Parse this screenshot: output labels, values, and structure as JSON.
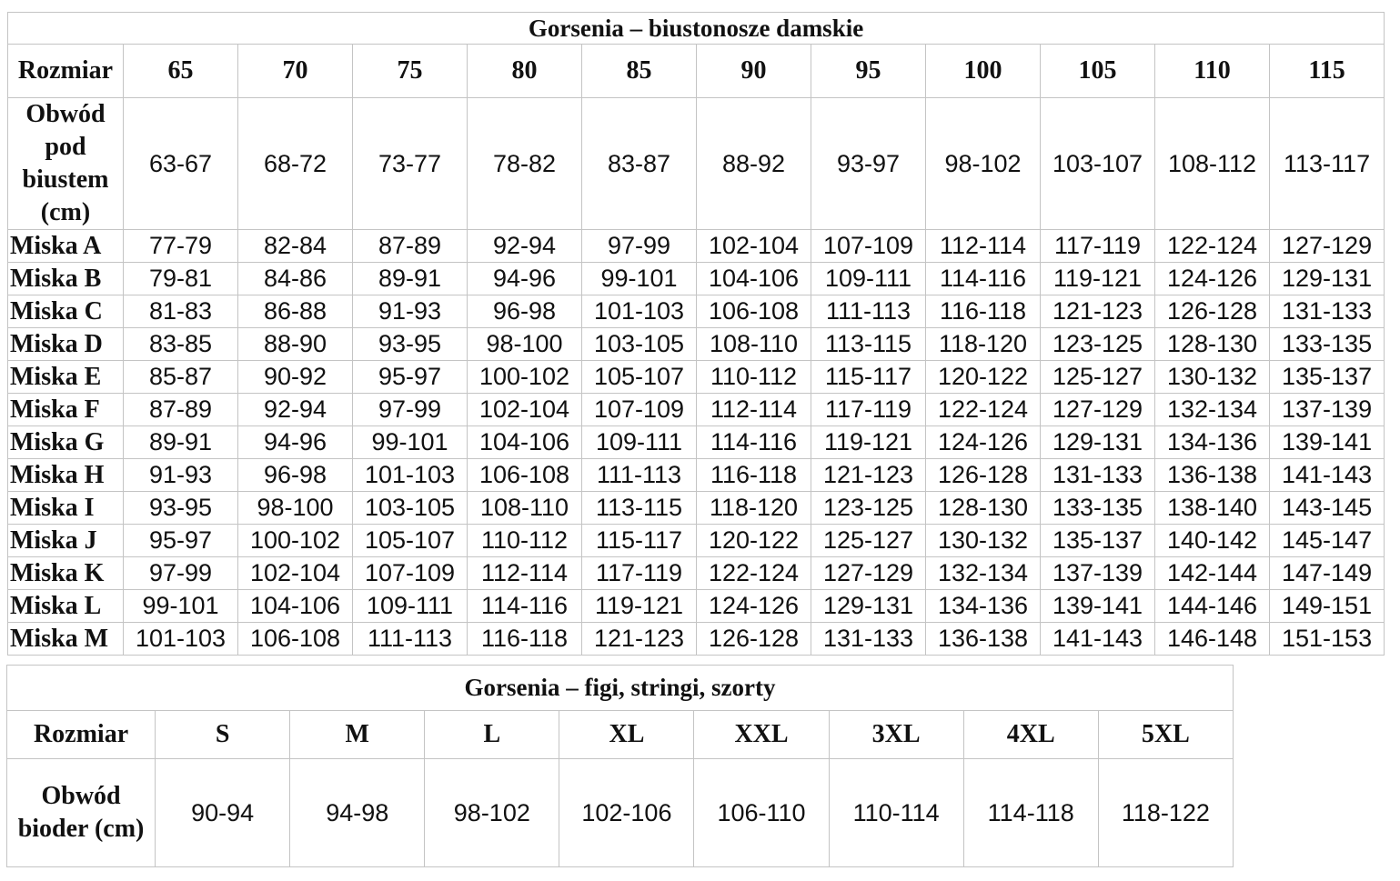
{
  "bras": {
    "title": "Gorsenia – biustonosze damskie",
    "size_label": "Rozmiar",
    "sizes": [
      "65",
      "70",
      "75",
      "80",
      "85",
      "90",
      "95",
      "100",
      "105",
      "110",
      "115"
    ],
    "underbust_label": "Obwód pod biustem (cm)",
    "underbust": [
      "63-67",
      "68-72",
      "73-77",
      "78-82",
      "83-87",
      "88-92",
      "93-97",
      "98-102",
      "103-107",
      "108-112",
      "113-117"
    ],
    "cups": [
      {
        "label": "Miska A",
        "values": [
          "77-79",
          "82-84",
          "87-89",
          "92-94",
          "97-99",
          "102-104",
          "107-109",
          "112-114",
          "117-119",
          "122-124",
          "127-129"
        ]
      },
      {
        "label": "Miska B",
        "values": [
          "79-81",
          "84-86",
          "89-91",
          "94-96",
          "99-101",
          "104-106",
          "109-111",
          "114-116",
          "119-121",
          "124-126",
          "129-131"
        ]
      },
      {
        "label": "Miska C",
        "values": [
          "81-83",
          "86-88",
          "91-93",
          "96-98",
          "101-103",
          "106-108",
          "111-113",
          "116-118",
          "121-123",
          "126-128",
          "131-133"
        ]
      },
      {
        "label": "Miska D",
        "values": [
          "83-85",
          "88-90",
          "93-95",
          "98-100",
          "103-105",
          "108-110",
          "113-115",
          "118-120",
          "123-125",
          "128-130",
          "133-135"
        ]
      },
      {
        "label": "Miska E",
        "values": [
          "85-87",
          "90-92",
          "95-97",
          "100-102",
          "105-107",
          "110-112",
          "115-117",
          "120-122",
          "125-127",
          "130-132",
          "135-137"
        ]
      },
      {
        "label": "Miska F",
        "values": [
          "87-89",
          "92-94",
          "97-99",
          "102-104",
          "107-109",
          "112-114",
          "117-119",
          "122-124",
          "127-129",
          "132-134",
          "137-139"
        ]
      },
      {
        "label": "Miska G",
        "values": [
          "89-91",
          "94-96",
          "99-101",
          "104-106",
          "109-111",
          "114-116",
          "119-121",
          "124-126",
          "129-131",
          "134-136",
          "139-141"
        ]
      },
      {
        "label": "Miska H",
        "values": [
          "91-93",
          "96-98",
          "101-103",
          "106-108",
          "111-113",
          "116-118",
          "121-123",
          "126-128",
          "131-133",
          "136-138",
          "141-143"
        ]
      },
      {
        "label": "Miska I",
        "values": [
          "93-95",
          "98-100",
          "103-105",
          "108-110",
          "113-115",
          "118-120",
          "123-125",
          "128-130",
          "133-135",
          "138-140",
          "143-145"
        ]
      },
      {
        "label": "Miska J",
        "values": [
          "95-97",
          "100-102",
          "105-107",
          "110-112",
          "115-117",
          "120-122",
          "125-127",
          "130-132",
          "135-137",
          "140-142",
          "145-147"
        ]
      },
      {
        "label": "Miska K",
        "values": [
          "97-99",
          "102-104",
          "107-109",
          "112-114",
          "117-119",
          "122-124",
          "127-129",
          "132-134",
          "137-139",
          "142-144",
          "147-149"
        ]
      },
      {
        "label": "Miska L",
        "values": [
          "99-101",
          "104-106",
          "109-111",
          "114-116",
          "119-121",
          "124-126",
          "129-131",
          "134-136",
          "139-141",
          "144-146",
          "149-151"
        ]
      },
      {
        "label": "Miska M",
        "values": [
          "101-103",
          "106-108",
          "111-113",
          "116-118",
          "121-123",
          "126-128",
          "131-133",
          "136-138",
          "141-143",
          "146-148",
          "151-153"
        ]
      }
    ]
  },
  "briefs": {
    "title": "Gorsenia – figi, stringi, szorty",
    "size_label": "Rozmiar",
    "sizes": [
      "S",
      "M",
      "L",
      "XL",
      "XXL",
      "3XL",
      "4XL",
      "5XL"
    ],
    "hip_label": "Obwód bioder (cm)",
    "hips": [
      "90-94",
      "94-98",
      "98-102",
      "102-106",
      "106-110",
      "110-114",
      "114-118",
      "118-122"
    ]
  }
}
